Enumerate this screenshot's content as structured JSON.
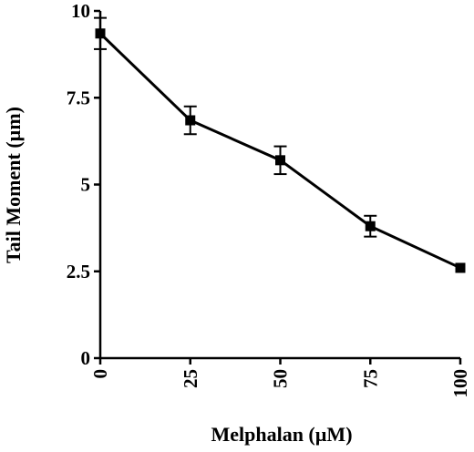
{
  "chart_data": {
    "type": "line",
    "title": "",
    "xlabel": "Melphalan (µM)",
    "ylabel": "Tail Moment (µm)",
    "xlim": [
      0,
      100
    ],
    "ylim": [
      0,
      10
    ],
    "x_ticks": [
      0,
      25,
      50,
      75,
      100
    ],
    "y_ticks": [
      0,
      2.5,
      5,
      7.5,
      10
    ],
    "x_tick_labels": [
      "0",
      "25",
      "50",
      "75",
      "100"
    ],
    "y_tick_labels": [
      "0",
      "2.5",
      "5",
      "7.5",
      "10"
    ],
    "grid": false,
    "series": [
      {
        "x": [
          0,
          25,
          50,
          75,
          100
        ],
        "y": [
          9.35,
          6.85,
          5.7,
          3.8,
          2.6
        ],
        "error": [
          0.45,
          0.4,
          0.4,
          0.3,
          0.0
        ],
        "marker": "square",
        "color": "#000000"
      }
    ]
  }
}
